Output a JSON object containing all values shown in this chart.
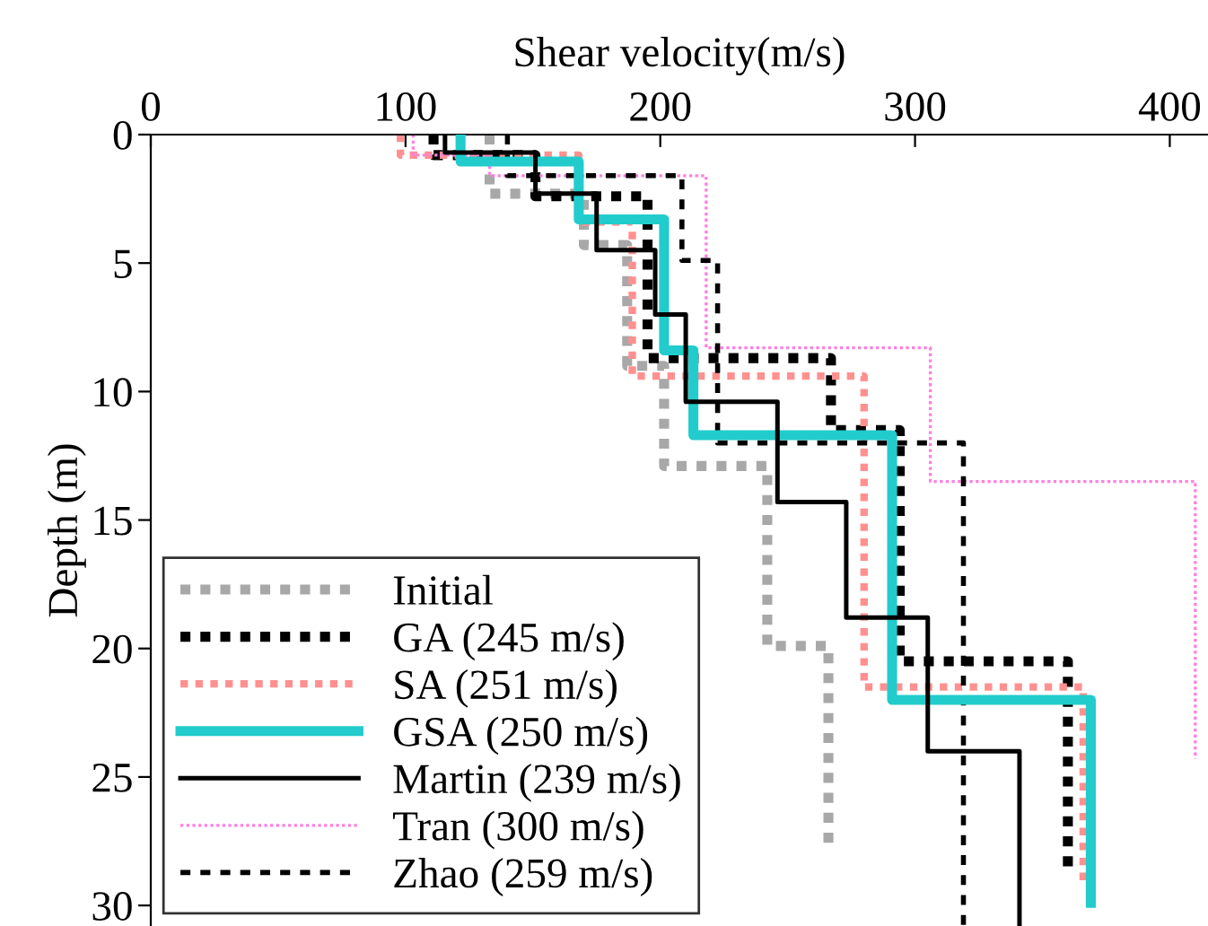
{
  "chart_data": {
    "type": "line",
    "xlabel": "Shear velocity(m/s)",
    "ylabel": "Depth (m)",
    "xlim": [
      0,
      415
    ],
    "xticks": [
      0,
      100,
      200,
      300,
      400
    ],
    "ylim": [
      30.8,
      0
    ],
    "yticks": [
      0,
      5,
      10,
      15,
      20,
      25,
      30
    ],
    "grid": false,
    "legend": "bottom left",
    "marker": "none",
    "series": [
      {
        "name": "Initial",
        "color": "#a8a8a8",
        "line_style": "dotted",
        "x": [
          133,
          133,
          170,
          170,
          187,
          187,
          201.5,
          201.5,
          242,
          242,
          266,
          266
        ],
        "values": [
          0,
          2.3,
          2.3,
          4.3,
          4.3,
          9.0,
          9.0,
          12.9,
          12.9,
          19.9,
          19.9,
          27.8
        ]
      },
      {
        "name": "GA (245 m/s)",
        "color": "#000000",
        "line_style": "dotted",
        "x": [
          111,
          111,
          151,
          151,
          195,
          195,
          267,
          267,
          294,
          294,
          360,
          360
        ],
        "values": [
          0,
          0.8,
          0.8,
          2.4,
          2.4,
          8.7,
          8.7,
          11.5,
          11.5,
          20.5,
          20.5,
          28.5
        ]
      },
      {
        "name": "SA (251 m/s)",
        "color": "#ff9090",
        "line_style": "dotted",
        "x": [
          98,
          98,
          168,
          168,
          189,
          189,
          280,
          280,
          366,
          366
        ],
        "values": [
          0,
          0.8,
          0.8,
          3.4,
          3.4,
          9.4,
          9.4,
          21.5,
          21.5,
          29.2
        ]
      },
      {
        "name": "GSA (250 m/s)",
        "color": "#22cccc",
        "line_style": "solid",
        "x": [
          121.6,
          121.6,
          168,
          168,
          201.5,
          201.5,
          213,
          213,
          291,
          291,
          369,
          369
        ],
        "values": [
          0,
          1.05,
          1.05,
          3.3,
          3.3,
          8.4,
          8.4,
          11.7,
          11.7,
          22.0,
          22.0,
          29.9
        ]
      },
      {
        "name": "Martin (239 m/s)",
        "color": "#000000",
        "line_style": "solid",
        "x": [
          115.5,
          115.5,
          151,
          151,
          175,
          175,
          198,
          198,
          210,
          210,
          246,
          246,
          273,
          273,
          305,
          305,
          341,
          341
        ],
        "values": [
          0,
          0.7,
          0.7,
          2.3,
          2.3,
          4.5,
          4.5,
          7.0,
          7.0,
          10.4,
          10.4,
          14.3,
          14.3,
          18.8,
          18.8,
          24.0,
          24.0,
          30.8
        ]
      },
      {
        "name": "Tran (300 m/s)",
        "color": "#ff80e0",
        "line_style": "dotted",
        "x": [
          103,
          103,
          133,
          133,
          218,
          218,
          306,
          306,
          410,
          410
        ],
        "values": [
          0,
          0.8,
          0.8,
          1.6,
          1.6,
          8.3,
          8.3,
          13.5,
          13.5,
          24.3
        ]
      },
      {
        "name": "Zhao (259 m/s)",
        "color": "#000000",
        "line_style": "dashed",
        "x": [
          140,
          140,
          208.5,
          208.5,
          222.5,
          222.5,
          319,
          319
        ],
        "values": [
          0,
          1.6,
          1.6,
          4.9,
          4.9,
          12.0,
          12.0,
          30.8
        ]
      }
    ]
  }
}
